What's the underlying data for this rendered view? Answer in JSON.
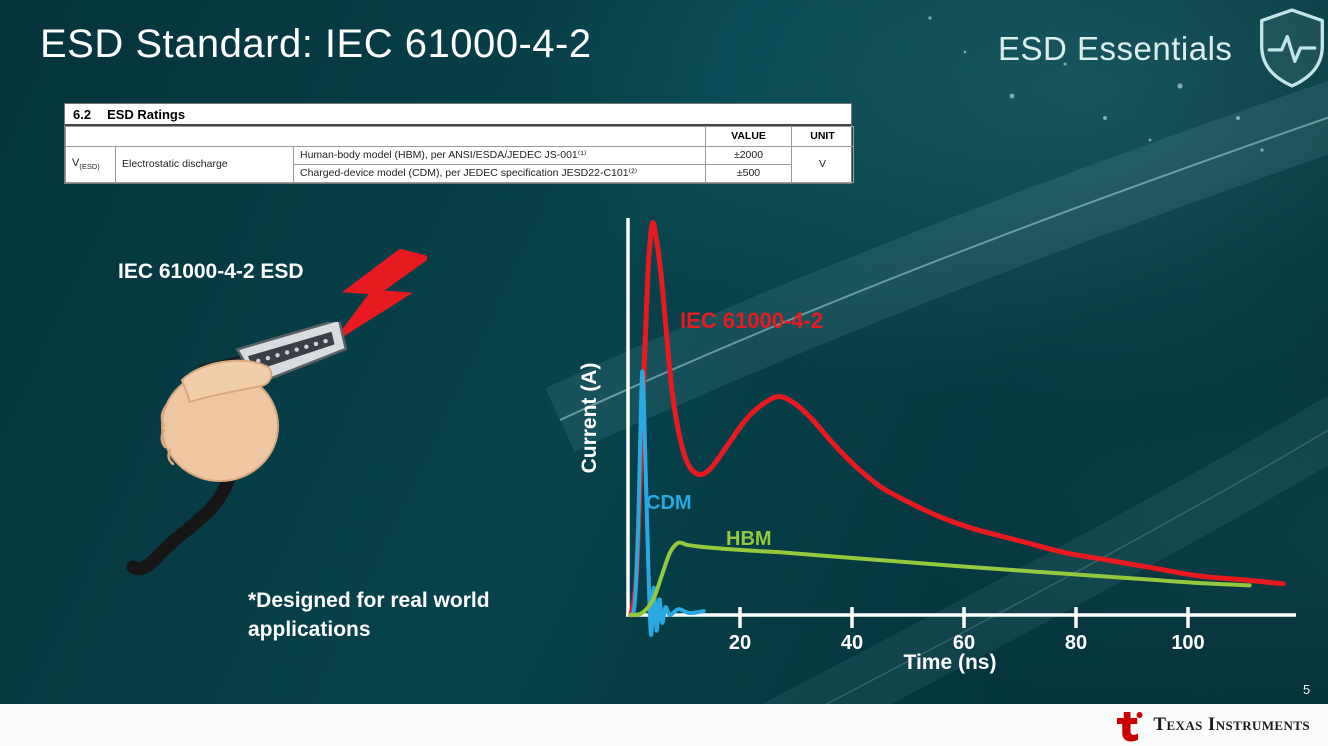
{
  "slide": {
    "title": "ESD Standard: IEC 61000-4-2",
    "series_brand": "ESD Essentials",
    "page_number": "5"
  },
  "ratings_table": {
    "section_number": "6.2",
    "section_title": "ESD Ratings",
    "value_header": "VALUE",
    "unit_header": "UNIT",
    "symbol_main": "V",
    "symbol_sub": "(ESD)",
    "parameter": "Electrostatic discharge",
    "rows": [
      {
        "description": "Human-body model (HBM), per ANSI/ESDA/JEDEC JS-001⁽¹⁾",
        "value": "±2000"
      },
      {
        "description": "Charged-device model (CDM), per JEDEC specification JESD22-C101⁽²⁾",
        "value": "±500"
      }
    ],
    "unit": "V"
  },
  "left_panel": {
    "label": "IEC 61000-4-2 ESD",
    "note": "*Designed for real world\napplications",
    "bolt_icon": "red-lightning-bolt",
    "illustration": "hand-holding-hdmi-connector"
  },
  "chart_data": {
    "type": "line",
    "title": "",
    "xlabel": "Time (ns)",
    "ylabel": "Current (A)",
    "x_ticks": [
      20,
      40,
      60,
      80,
      100
    ],
    "xlim": [
      0,
      118
    ],
    "y_axis_tick_labels": "none (relative current amplitude)",
    "grid": false,
    "legend_position": "inline-labels",
    "series": [
      {
        "name": "IEC 61000-4-2",
        "color": "#e8191f",
        "points": [
          [
            0.5,
            0
          ],
          [
            1.5,
            10
          ],
          [
            2.5,
            48
          ],
          [
            3.5,
            86
          ],
          [
            4.3,
            100
          ],
          [
            5,
            97
          ],
          [
            6,
            86
          ],
          [
            7,
            70
          ],
          [
            8,
            56
          ],
          [
            9.5,
            44
          ],
          [
            11,
            38
          ],
          [
            13,
            36
          ],
          [
            15,
            38
          ],
          [
            18,
            44
          ],
          [
            21,
            50
          ],
          [
            24,
            54
          ],
          [
            27,
            56
          ],
          [
            30,
            54
          ],
          [
            33,
            50
          ],
          [
            36,
            45
          ],
          [
            40,
            39
          ],
          [
            45,
            33
          ],
          [
            50,
            29
          ],
          [
            56,
            25
          ],
          [
            62,
            22
          ],
          [
            70,
            19
          ],
          [
            78,
            16
          ],
          [
            86,
            14
          ],
          [
            94,
            12
          ],
          [
            102,
            10
          ],
          [
            110,
            9
          ],
          [
            117,
            8
          ]
        ]
      },
      {
        "name": "CDM",
        "color": "#2aa9e0",
        "points": [
          [
            0.5,
            0
          ],
          [
            1.2,
            3
          ],
          [
            1.8,
            22
          ],
          [
            2.4,
            58
          ],
          [
            2.7,
            60
          ],
          [
            3.1,
            40
          ],
          [
            3.6,
            14
          ],
          [
            4.1,
            -5
          ],
          [
            4.6,
            7
          ],
          [
            5.1,
            -4
          ],
          [
            5.6,
            4
          ],
          [
            6.1,
            -2
          ],
          [
            6.7,
            2
          ],
          [
            7.5,
            0
          ],
          [
            9,
            1.5
          ],
          [
            11,
            0.5
          ],
          [
            13.5,
            1
          ]
        ]
      },
      {
        "name": "HBM",
        "color": "#94c83d",
        "points": [
          [
            0.5,
            0
          ],
          [
            2.5,
            0.5
          ],
          [
            4.5,
            4
          ],
          [
            6,
            10
          ],
          [
            7.5,
            16
          ],
          [
            9,
            18.5
          ],
          [
            10.5,
            18
          ],
          [
            13,
            17.5
          ],
          [
            17,
            17
          ],
          [
            22,
            16.5
          ],
          [
            28,
            16
          ],
          [
            35,
            15.2
          ],
          [
            43,
            14.3
          ],
          [
            52,
            13.3
          ],
          [
            62,
            12.2
          ],
          [
            72,
            11.2
          ],
          [
            82,
            10.2
          ],
          [
            92,
            9.2
          ],
          [
            102,
            8.2
          ],
          [
            111,
            7.6
          ]
        ]
      }
    ]
  },
  "footer": {
    "brand": "Texas Instruments",
    "logo_icon": "ti-logo"
  },
  "colors": {
    "iec_red": "#e8191f",
    "cdm_cyan": "#2aa9e0",
    "hbm_green": "#94c83d",
    "background_teal": "#07434d",
    "axis_white": "#ffffff"
  }
}
